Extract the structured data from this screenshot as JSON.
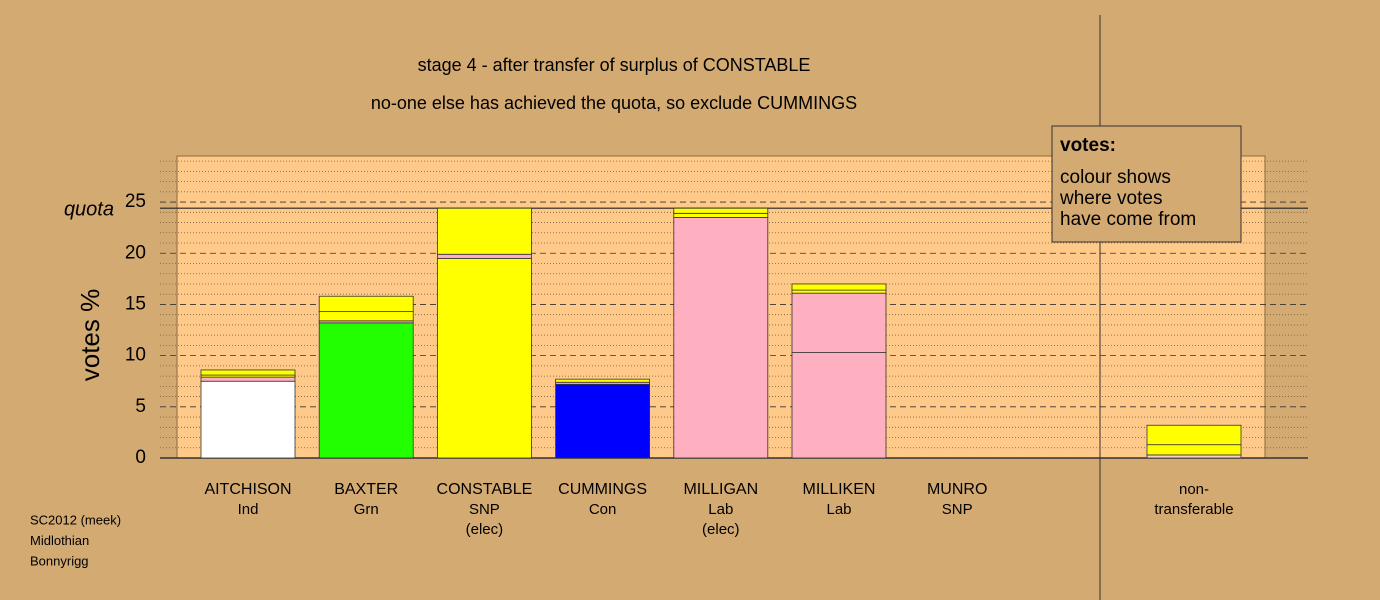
{
  "chart_data": {
    "type": "stacked-bar",
    "title": "stage 4 - after transfer of surplus of CONSTABLE",
    "subtitle": "no-one else has achieved the quota, so exclude CUMMINGS",
    "y_label": "votes %",
    "categories": [
      [
        "AITCHISON",
        "Ind"
      ],
      [
        "BAXTER",
        "Grn"
      ],
      [
        "CONSTABLE",
        "SNP",
        "(elec)"
      ],
      [
        "CUMMINGS",
        "Con"
      ],
      [
        "MILLIGAN",
        "Lab",
        "(elec)"
      ],
      [
        "MILLIKEN",
        "Lab"
      ],
      [
        "MUNRO",
        "SNP"
      ],
      [
        "non-",
        "transferable"
      ]
    ],
    "stacks": [
      {
        "values": [
          7.5,
          0.4,
          0.2,
          0.5
        ],
        "colors": [
          "#ffffff",
          "#ffb0c0",
          "#ffff00",
          "#ffff00"
        ]
      },
      {
        "values": [
          13.2,
          0.2,
          0.9,
          1.5
        ],
        "colors": [
          "#22ff00",
          "#ffb0c0",
          "#ffff00",
          "#ffff00"
        ]
      },
      {
        "values": [
          19.5,
          0.4,
          4.5
        ],
        "colors": [
          "#ffff00",
          "#ffb0c0",
          "#ffff00"
        ]
      },
      {
        "values": [
          7.2,
          0.2,
          0.3
        ],
        "colors": [
          "#0000ff",
          "#ffb0c0",
          "#ffff00"
        ]
      },
      {
        "values": [
          23.5,
          0.4,
          0.5
        ],
        "colors": [
          "#ffb0c0",
          "#ffff00",
          "#ffff00"
        ]
      },
      {
        "values": [
          10.3,
          5.8,
          0.3,
          0.6
        ],
        "colors": [
          "#ffb0c0",
          "#ffb0c0",
          "#ffff00",
          "#ffff00"
        ]
      },
      {
        "values": [
          0
        ],
        "colors": [
          "#ffff00"
        ]
      },
      {
        "values": [
          0.3,
          1.0,
          1.9
        ],
        "colors": [
          "#ffd0d0",
          "#ffff00",
          "#ffff00"
        ]
      }
    ],
    "ylim": [
      0,
      29.5
    ],
    "yticks": [
      0,
      5,
      10,
      15,
      20,
      25
    ],
    "minor_yticks": [
      1,
      2,
      3,
      4,
      6,
      7,
      8,
      9,
      11,
      12,
      13,
      14,
      16,
      17,
      18,
      19,
      21,
      22,
      23,
      24,
      26,
      27,
      28,
      29
    ],
    "quota": {
      "label": "quota",
      "value": 24.4
    },
    "legend": {
      "title": "votes:",
      "lines": [
        "colour shows",
        "where votes",
        "have come from"
      ]
    },
    "footer": [
      "SC2012 (meek)",
      "Midlothian",
      "Bonnyrigg"
    ]
  }
}
